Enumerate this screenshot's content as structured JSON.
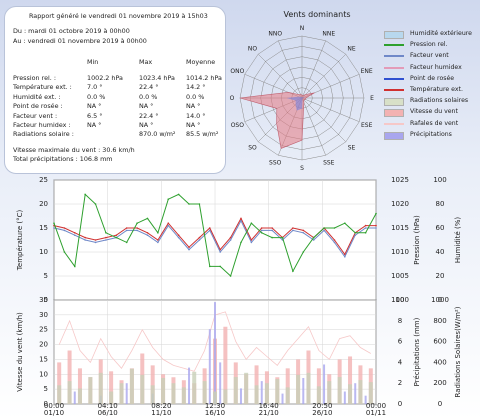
{
  "report": {
    "title": "Rapport généré le vendredi 01 novembre 2019 à 15h03",
    "period_from": "Du : mardi 01 octobre 2019 à 00h00",
    "period_to": "Au : vendredi 01 novembre 2019 à 00h00",
    "columns": [
      "Min",
      "Max",
      "Moyenne"
    ],
    "rows": [
      {
        "label": "Pression rel. :",
        "min": "1002.2 hPa",
        "max": "1023.4 hPa",
        "mean": "1014.2 hPa"
      },
      {
        "label": "Température ext. :",
        "min": "7.0 °",
        "max": "22.4 °",
        "mean": "14.2 °"
      },
      {
        "label": "Humidité ext. :",
        "min": "0.0 %",
        "max": "0.0 %",
        "mean": "0.0 %"
      },
      {
        "label": "Point de rosée :",
        "min": "NA °",
        "max": "NA °",
        "mean": "NA °"
      },
      {
        "label": "Facteur vent :",
        "min": "6.5 °",
        "max": "22.4 °",
        "mean": "14.0 °"
      },
      {
        "label": "Facteur humidex :",
        "min": "NA °",
        "max": "NA °",
        "mean": "NA °"
      },
      {
        "label": "Radiations solaire :",
        "min": "",
        "max": "870.0 w/m²",
        "mean": "85.5 w/m²"
      }
    ],
    "wind_max": "Vitesse maximale du vent : 30.6 km/h",
    "precip_total": "Total précipitations : 106.8 mm"
  },
  "legend": [
    {
      "label": "Humidité extérieure",
      "color": "#b8d8ee",
      "kind": "box"
    },
    {
      "label": "Pression rel.",
      "color": "#2ea02e",
      "kind": "line"
    },
    {
      "label": "Facteur vent",
      "color": "#6f88c8",
      "kind": "line"
    },
    {
      "label": "Facteur humidex",
      "color": "#e39bb8",
      "kind": "line"
    },
    {
      "label": "Point de rosée",
      "color": "#3050d0",
      "kind": "line"
    },
    {
      "label": "Température ext.",
      "color": "#d03030",
      "kind": "line"
    },
    {
      "label": "Radiations solaires",
      "color": "#d8e0c8",
      "kind": "box"
    },
    {
      "label": "Vitesse du vent",
      "color": "#f3b2b2",
      "kind": "box"
    },
    {
      "label": "Rafales de vent",
      "color": "#f6c8c8",
      "kind": "line"
    },
    {
      "label": "Précipitations",
      "color": "#a9a6ee",
      "kind": "box"
    }
  ],
  "chart_data": [
    {
      "type": "radar",
      "title": "Vents dominants",
      "directions": [
        "N",
        "NNE",
        "NE",
        "ENE",
        "E",
        "ESE",
        "SE",
        "SSE",
        "S",
        "SSO",
        "SO",
        "OSO",
        "O",
        "ONO",
        "NO",
        "NNO"
      ],
      "rings": 6,
      "ring_max": 100,
      "values": [
        5,
        4,
        8,
        22,
        6,
        6,
        4,
        8,
        68,
        88,
        58,
        44,
        100,
        24,
        8,
        6
      ]
    },
    {
      "type": "line",
      "x_ticks": [
        "01/10",
        "06/10",
        "11/10",
        "16/10",
        "21/10",
        "26/10",
        "01/11"
      ],
      "x_minor_ticks": [
        "00:00",
        "04:10",
        "08:20",
        "12:30",
        "16:40",
        "20:50",
        "00:00"
      ],
      "x_range_days": [
        0,
        31
      ],
      "y_left": {
        "label": "Température (°C)",
        "range": [
          0,
          25
        ],
        "ticks": [
          0,
          5,
          10,
          15,
          20,
          25
        ]
      },
      "y_right1": {
        "label": "Pression (hPa)",
        "range": [
          1000,
          1025
        ],
        "ticks": [
          1000,
          1005,
          1010,
          1015,
          1020,
          1025
        ]
      },
      "y_right2": {
        "label": "Humidité (%)",
        "range": [
          0,
          100
        ],
        "ticks": [
          0,
          20,
          40,
          60,
          80,
          100
        ]
      },
      "grid": true,
      "series": [
        {
          "name": "Température ext.",
          "axis": "left",
          "color": "#d03030",
          "x": [
            0,
            1,
            2,
            3,
            4,
            5,
            6,
            7,
            8,
            9,
            10,
            11,
            12,
            13,
            14,
            15,
            16,
            17,
            18,
            19,
            20,
            21,
            22,
            23,
            24,
            25,
            26,
            27,
            28,
            29,
            30,
            31
          ],
          "values": [
            15.5,
            15,
            14,
            13,
            12.5,
            13,
            13.5,
            15,
            15,
            14,
            12.5,
            16,
            13.5,
            11,
            13,
            15,
            10.5,
            13,
            17,
            12.5,
            15,
            15,
            13,
            15,
            14.5,
            13,
            15,
            12.5,
            9.5,
            14,
            15.5,
            15.5
          ]
        },
        {
          "name": "Facteur vent",
          "axis": "left",
          "color": "#6f88c8",
          "x": [
            0,
            1,
            2,
            3,
            4,
            5,
            6,
            7,
            8,
            9,
            10,
            11,
            12,
            13,
            14,
            15,
            16,
            17,
            18,
            19,
            20,
            21,
            22,
            23,
            24,
            25,
            26,
            27,
            28,
            29,
            30,
            31
          ],
          "values": [
            15,
            14.5,
            13.5,
            12.5,
            12,
            12.5,
            13,
            14.5,
            14.5,
            13.5,
            12,
            15.5,
            13,
            10.5,
            12.5,
            14.5,
            10,
            12.5,
            16.5,
            12,
            14.5,
            14.5,
            12.5,
            14.5,
            14,
            12.5,
            14.5,
            12,
            9,
            13.5,
            15,
            15
          ]
        },
        {
          "name": "Pression rel.",
          "axis": "right1",
          "color": "#2ea02e",
          "x": [
            0,
            1,
            2,
            3,
            4,
            5,
            6,
            7,
            8,
            9,
            10,
            11,
            12,
            13,
            14,
            15,
            16,
            17,
            18,
            19,
            20,
            21,
            22,
            23,
            24,
            25,
            26,
            27,
            28,
            29,
            30,
            31
          ],
          "values": [
            1016,
            1010,
            1007,
            1022,
            1020,
            1014,
            1013,
            1012,
            1016,
            1017,
            1014,
            1021,
            1022,
            1020,
            1020,
            1007,
            1007,
            1005,
            1012,
            1016,
            1014,
            1013,
            1013,
            1006,
            1010,
            1013,
            1015,
            1015,
            1016,
            1014,
            1014,
            1018
          ]
        }
      ]
    },
    {
      "type": "bar",
      "x_ticks": [
        "01/10",
        "06/10",
        "11/10",
        "16/10",
        "21/10",
        "26/10",
        "01/11"
      ],
      "x_minor_ticks": [
        "00:00",
        "04:10",
        "08:20",
        "12:30",
        "16:40",
        "20:50",
        "00:00"
      ],
      "y_left": {
        "label": "Vitesse du vent (km/h)",
        "range": [
          0,
          35
        ],
        "ticks": [
          0,
          5,
          10,
          15,
          20,
          25,
          30,
          35
        ]
      },
      "y_right1": {
        "label": "Précipitations (mm)",
        "range": [
          0,
          10
        ],
        "ticks": [
          0,
          2,
          4,
          6,
          8,
          10
        ]
      },
      "y_right2": {
        "label": "Radiations Solaires(W/m²)",
        "range": [
          0,
          1000
        ],
        "ticks": [
          0,
          200,
          400,
          600,
          800,
          1000
        ]
      },
      "grid": true,
      "series": [
        {
          "name": "Vitesse du vent",
          "axis": "left",
          "color": "#f3b2b2",
          "x": [
            0.5,
            1.5,
            2.5,
            3.5,
            4.5,
            5.5,
            6.5,
            7.5,
            8.5,
            9.5,
            10.5,
            11.5,
            12.5,
            13.5,
            14.5,
            15.5,
            16.5,
            17.5,
            18.5,
            19.5,
            20.5,
            21.5,
            22.5,
            23.5,
            24.5,
            25.5,
            26.5,
            27.5,
            28.5,
            29.5,
            30.5
          ],
          "values": [
            14,
            18,
            12,
            9,
            15,
            11,
            8,
            12,
            17,
            13,
            10,
            9,
            8,
            7,
            12,
            22,
            26,
            14,
            10,
            13,
            11,
            9,
            12,
            15,
            18,
            12,
            10,
            15,
            16,
            13,
            12
          ]
        },
        {
          "name": "Rafales de vent",
          "axis": "left",
          "color": "#f6c8c8",
          "x": [
            0.5,
            1.5,
            2.5,
            3.5,
            4.5,
            5.5,
            6.5,
            7.5,
            8.5,
            9.5,
            10.5,
            11.5,
            12.5,
            13.5,
            14.5,
            15.5,
            16.5,
            17.5,
            18.5,
            19.5,
            20.5,
            21.5,
            22.5,
            23.5,
            24.5,
            25.5,
            26.5,
            27.5,
            28.5,
            29.5,
            30.5
          ],
          "values": [
            20,
            28,
            18,
            14,
            22,
            16,
            12,
            18,
            25,
            19,
            15,
            13,
            12,
            11,
            18,
            30,
            31,
            21,
            15,
            19,
            16,
            13,
            18,
            22,
            26,
            18,
            15,
            22,
            23,
            19,
            17
          ]
        },
        {
          "name": "Précipitations",
          "axis": "right1",
          "color": "#a9a6ee",
          "x": [
            2,
            4.5,
            7,
            9.5,
            13,
            15,
            15.5,
            16,
            18,
            20,
            22,
            24,
            26,
            28,
            29,
            30
          ],
          "values": [
            1.2,
            0.8,
            2.0,
            1.0,
            3.5,
            7.2,
            9.8,
            4.0,
            1.5,
            2.2,
            1.0,
            2.5,
            3.8,
            1.2,
            2.0,
            0.8
          ]
        },
        {
          "name": "Radiations solaires",
          "axis": "right2",
          "color": "#c8cfb8",
          "x": [
            0.5,
            1.5,
            2.5,
            3.5,
            4.5,
            5.5,
            6.5,
            7.5,
            8.5,
            9.5,
            10.5,
            11.5,
            12.5,
            13.5,
            14.5,
            15.5,
            16.5,
            17.5,
            18.5,
            19.5,
            20.5,
            21.5,
            22.5,
            23.5,
            24.5,
            25.5,
            26.5,
            27.5,
            28.5,
            29.5,
            30.5
          ],
          "values": [
            180,
            220,
            150,
            260,
            300,
            120,
            200,
            340,
            280,
            180,
            250,
            200,
            160,
            310,
            220,
            120,
            140,
            260,
            300,
            180,
            200,
            240,
            160,
            280,
            300,
            170,
            220,
            260,
            190,
            230,
            210
          ]
        }
      ]
    }
  ]
}
